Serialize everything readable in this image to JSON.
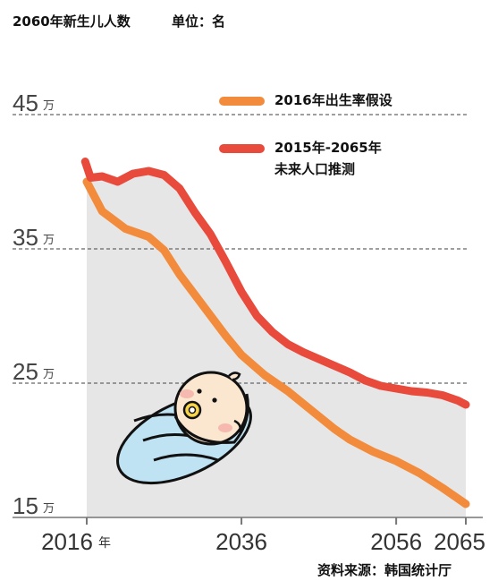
{
  "chart_data": {
    "type": "line",
    "title": "2060年新生儿人数",
    "unit_label": "单位：名",
    "y_unit": "万",
    "x_unit": "年",
    "ylim": [
      15,
      47
    ],
    "xlim": [
      2016,
      2065
    ],
    "yticks": [
      {
        "value": 45,
        "label": "45"
      },
      {
        "value": 35,
        "label": "35"
      },
      {
        "value": 25,
        "label": "25"
      },
      {
        "value": 15,
        "label": "15"
      }
    ],
    "xticks": [
      {
        "value": 2016,
        "label": "2016"
      },
      {
        "value": 2036,
        "label": "2036"
      },
      {
        "value": 2056,
        "label": "2056"
      },
      {
        "value": 2065,
        "label": "2065"
      }
    ],
    "grid": true,
    "legend_position": "top-right",
    "series": [
      {
        "name": "2016年出生率假设",
        "color": "#f28c3c",
        "x": [
          2016,
          2018,
          2021,
          2024,
          2026,
          2028,
          2031,
          2034,
          2036,
          2039,
          2042,
          2045,
          2048,
          2050,
          2053,
          2056,
          2059,
          2062,
          2065
        ],
        "y": [
          40.0,
          37.8,
          36.5,
          35.9,
          34.9,
          33.1,
          30.8,
          28.5,
          27.1,
          25.6,
          24.4,
          23.0,
          21.6,
          20.8,
          19.9,
          19.2,
          18.3,
          17.2,
          16.0
        ]
      },
      {
        "name": "2015年-2065年\n未来人口推测",
        "label_lines": [
          "2015年-2065年",
          "未来人口推测"
        ],
        "color": "#e84a3c",
        "x": [
          2015.8,
          2016.5,
          2018,
          2020,
          2022,
          2024,
          2026,
          2028,
          2030,
          2032,
          2034,
          2036,
          2038,
          2040,
          2042,
          2044,
          2046,
          2048,
          2050,
          2052,
          2054,
          2056,
          2058,
          2060,
          2062,
          2064,
          2065
        ],
        "y": [
          41.5,
          40.3,
          40.4,
          40.0,
          40.6,
          40.8,
          40.5,
          39.5,
          37.7,
          36.1,
          34.0,
          31.8,
          30.0,
          28.8,
          27.9,
          27.3,
          26.8,
          26.3,
          25.8,
          25.2,
          24.8,
          24.6,
          24.4,
          24.3,
          24.1,
          23.7,
          23.4
        ]
      }
    ],
    "source": "资料来源：韩国统计厅"
  }
}
